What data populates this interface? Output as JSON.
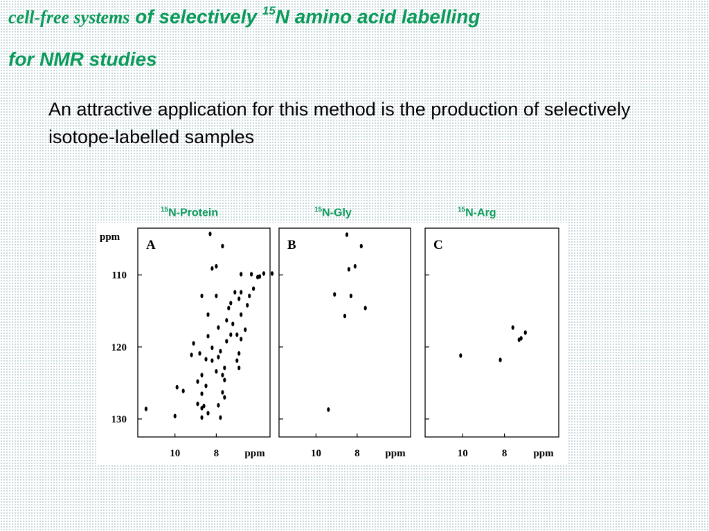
{
  "header": {
    "line1_serif": "cell-free systems",
    "line1_rest": " of selectively ",
    "line1_sup": "15",
    "line1_tail": "N amino acid labelling",
    "line2": "for NMR studies"
  },
  "body": {
    "text": "An attractive application for this method is the production of selectively isotope-labelled samples"
  },
  "colors": {
    "title": "#0a9a5a",
    "body": "#000000",
    "dots": "#000000"
  },
  "chart_data": [
    {
      "type": "scatter",
      "panel_letter": "A",
      "top_label": {
        "sup": "15",
        "text": "N-Protein"
      },
      "ylabel": "ppm",
      "xlabel": "ppm",
      "xlim": [
        11.8,
        5.4
      ],
      "ylim": [
        103.5,
        132.5
      ],
      "xticks": [
        10,
        8
      ],
      "yticks": [
        110,
        120,
        130
      ],
      "points": [
        [
          11.4,
          128.6
        ],
        [
          10.0,
          129.6
        ],
        [
          9.9,
          125.6
        ],
        [
          9.6,
          126.1
        ],
        [
          8.7,
          129.8
        ],
        [
          8.4,
          129.2
        ],
        [
          7.8,
          129.8
        ],
        [
          9.2,
          121.1
        ],
        [
          9.1,
          119.5
        ],
        [
          8.9,
          127.9
        ],
        [
          8.9,
          124.8
        ],
        [
          8.7,
          128.5
        ],
        [
          8.7,
          126.5
        ],
        [
          8.8,
          120.9
        ],
        [
          8.5,
          121.7
        ],
        [
          8.5,
          125.4
        ],
        [
          8.6,
          128.2
        ],
        [
          8.7,
          123.9
        ],
        [
          8.4,
          118.5
        ],
        [
          8.4,
          115.5
        ],
        [
          8.3,
          104.3
        ],
        [
          8.2,
          109.1
        ],
        [
          8.0,
          108.8
        ],
        [
          7.7,
          106.0
        ],
        [
          8.0,
          112.9
        ],
        [
          8.7,
          112.9
        ],
        [
          8.2,
          120.1
        ],
        [
          8.0,
          123.4
        ],
        [
          7.9,
          117.3
        ],
        [
          7.9,
          121.4
        ],
        [
          7.8,
          120.6
        ],
        [
          7.6,
          122.9
        ],
        [
          7.5,
          119.2
        ],
        [
          7.6,
          124.6
        ],
        [
          7.5,
          116.3
        ],
        [
          7.7,
          126.3
        ],
        [
          7.9,
          128.1
        ],
        [
          7.4,
          114.6
        ],
        [
          7.3,
          113.9
        ],
        [
          7.2,
          116.8
        ],
        [
          7.1,
          112.4
        ],
        [
          7.0,
          121.9
        ],
        [
          6.9,
          113.3
        ],
        [
          6.8,
          112.4
        ],
        [
          6.9,
          120.9
        ],
        [
          6.8,
          118.9
        ],
        [
          6.6,
          117.6
        ],
        [
          6.5,
          114.2
        ],
        [
          6.3,
          109.9
        ],
        [
          6.4,
          112.9
        ],
        [
          6.2,
          111.9
        ],
        [
          6.0,
          110.3
        ],
        [
          5.9,
          110.2
        ],
        [
          5.7,
          109.8
        ],
        [
          5.3,
          109.8
        ],
        [
          6.8,
          109.9
        ],
        [
          7.3,
          118.3
        ],
        [
          7.0,
          118.3
        ],
        [
          7.6,
          127.0
        ],
        [
          6.9,
          122.9
        ],
        [
          6.8,
          115.5
        ],
        [
          8.2,
          121.9
        ],
        [
          7.7,
          123.9
        ]
      ]
    },
    {
      "type": "scatter",
      "panel_letter": "B",
      "top_label": {
        "sup": "15",
        "text": "N-Gly"
      },
      "xlabel": "ppm",
      "xlim": [
        11.8,
        5.4
      ],
      "ylim": [
        103.5,
        132.5
      ],
      "xticks": [
        10,
        8
      ],
      "yticks": [
        110,
        120,
        130
      ],
      "points": [
        [
          8.5,
          104.4
        ],
        [
          7.8,
          106.0
        ],
        [
          8.1,
          108.8
        ],
        [
          8.4,
          109.2
        ],
        [
          9.1,
          112.7
        ],
        [
          8.3,
          112.9
        ],
        [
          8.6,
          115.7
        ],
        [
          7.6,
          114.6
        ],
        [
          9.4,
          128.7
        ]
      ]
    },
    {
      "type": "scatter",
      "panel_letter": "C",
      "top_label": {
        "sup": "15",
        "text": "N-Arg"
      },
      "xlabel": "ppm",
      "xlim": [
        11.8,
        5.4
      ],
      "ylim": [
        103.5,
        132.5
      ],
      "xticks": [
        10,
        8
      ],
      "yticks": [
        110,
        120,
        130
      ],
      "points": [
        [
          10.1,
          121.2
        ],
        [
          8.2,
          121.8
        ],
        [
          7.6,
          117.3
        ],
        [
          7.0,
          118.0
        ],
        [
          7.3,
          119.0
        ],
        [
          7.2,
          118.8
        ]
      ]
    }
  ]
}
